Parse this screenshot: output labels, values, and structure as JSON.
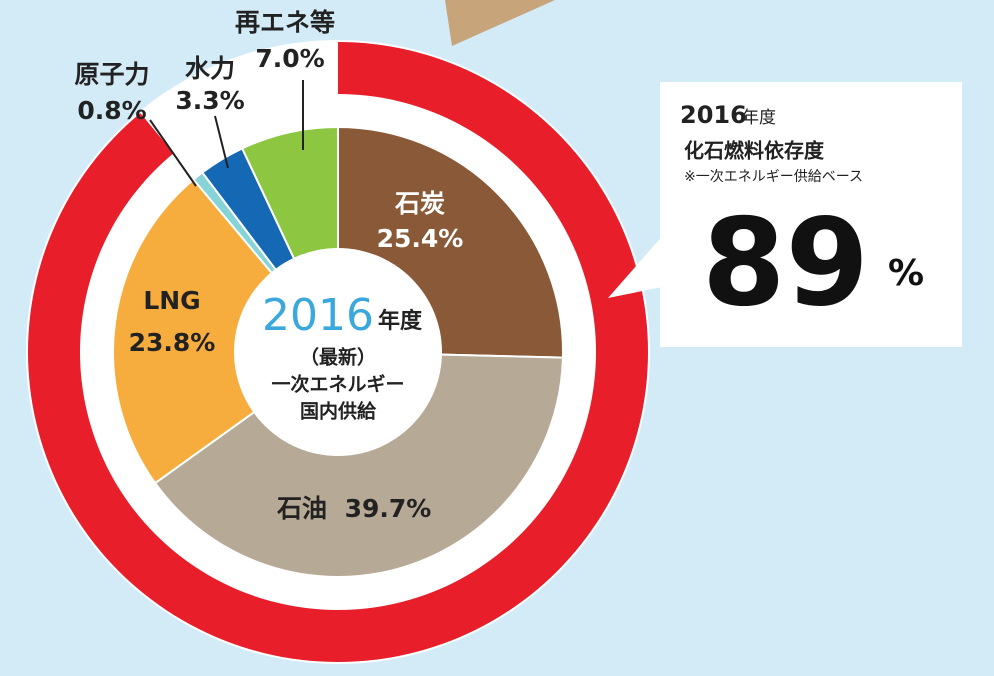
{
  "chart_data": {
    "type": "donut",
    "categories": [
      "石炭",
      "石油",
      "LNG",
      "原子力",
      "水力",
      "再エネ等"
    ],
    "values": [
      25.4,
      39.7,
      23.8,
      0.8,
      3.3,
      7.0
    ],
    "value_labels": [
      "25.4%",
      "39.7%",
      "23.8%",
      "0.8%",
      "3.3%",
      "7.0%"
    ],
    "colors": [
      "#8a5a38",
      "#b6a995",
      "#f7ad3d",
      "#86d3d8",
      "#1468b4",
      "#8dc641"
    ],
    "center": {
      "year": "2016",
      "year_suffix": "年度",
      "lines": [
        "（最新）",
        "一次エネルギー",
        "国内供給"
      ]
    },
    "ring": {
      "name": "化石燃料依存度",
      "value": 89,
      "value_label": "89",
      "unit": "%",
      "color": "#e81e2a",
      "year": "2016",
      "year_suffix": "年度",
      "note": "※一次エネルギー供給ベース"
    }
  }
}
